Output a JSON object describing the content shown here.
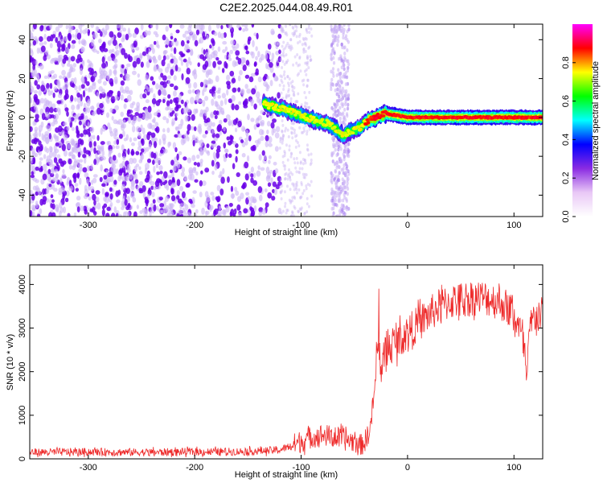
{
  "title": "C2E2.2025.044.08.49.R01",
  "colors": {
    "trace": "#ee2a2a",
    "scatter_low": "#cdb6f5",
    "scatter_high": "#6a00e8",
    "colormap": [
      "#ffffff",
      "#e9c8f6",
      "#8a2be2",
      "#0000ff",
      "#00ffff",
      "#00ff00",
      "#ffff00",
      "#ff0000",
      "#ff00ff"
    ]
  },
  "chart_data": [
    {
      "type": "heatmap",
      "xlabel": "Height of straight line (km)",
      "ylabel": "Frequency (Hz)",
      "xlim": [
        -355,
        127
      ],
      "ylim": [
        -51,
        48
      ],
      "xticks": [
        -300,
        -200,
        -100,
        0,
        100
      ],
      "yticks": [
        -40,
        -20,
        0,
        20,
        40
      ],
      "features": [
        {
          "region": "diffuse noise",
          "x": [
            -355,
            -120
          ],
          "y": [
            -51,
            48
          ],
          "amplitude": 0.2
        },
        {
          "region": "noise band",
          "x": [
            -72,
            -55
          ],
          "y": [
            -51,
            48
          ],
          "amplitude": 0.1
        },
        {
          "region": "signal",
          "points": [
            [
              -135,
              7
            ],
            [
              -110,
              3
            ],
            [
              -90,
              -1
            ],
            [
              -75,
              -3
            ],
            [
              -60,
              -9
            ],
            [
              -45,
              -5
            ],
            [
              -35,
              -1
            ],
            [
              -20,
              2
            ],
            [
              0,
              0
            ],
            [
              50,
              0
            ],
            [
              127,
              0
            ]
          ],
          "amplitude": 0.95
        }
      ],
      "colorbar": {
        "label": "Normalized spectral amplitude",
        "range": [
          0,
          1
        ],
        "ticks": [
          "0.0",
          "0.2",
          "0.4",
          "0.6",
          "0.8"
        ]
      }
    },
    {
      "type": "line",
      "xlabel": "Height of straight line (km)",
      "ylabel": "SNR (10 * v/v)",
      "xlim": [
        -355,
        127
      ],
      "ylim": [
        0,
        4450
      ],
      "xticks": [
        -300,
        -200,
        -100,
        0,
        100
      ],
      "yticks": [
        0,
        1000,
        2000,
        3000,
        4000
      ],
      "series": [
        {
          "x": [
            -355,
            -300,
            -250,
            -200,
            -150,
            -120,
            -100,
            -90,
            -80,
            -70,
            -60,
            -50,
            -45,
            -40,
            -35,
            -30,
            -28,
            -25,
            -20,
            -10,
            0,
            10,
            20,
            30,
            40,
            50,
            60,
            70,
            80,
            90,
            100,
            105,
            110,
            112,
            115,
            120,
            127
          ],
          "values": [
            150,
            160,
            150,
            160,
            170,
            200,
            400,
            500,
            550,
            500,
            450,
            400,
            300,
            400,
            700,
            1800,
            3000,
            2000,
            2500,
            2700,
            2900,
            3100,
            3300,
            3500,
            3600,
            3650,
            3700,
            3700,
            3650,
            3550,
            3300,
            3000,
            2500,
            1700,
            3000,
            3300,
            3300
          ]
        }
      ]
    }
  ]
}
